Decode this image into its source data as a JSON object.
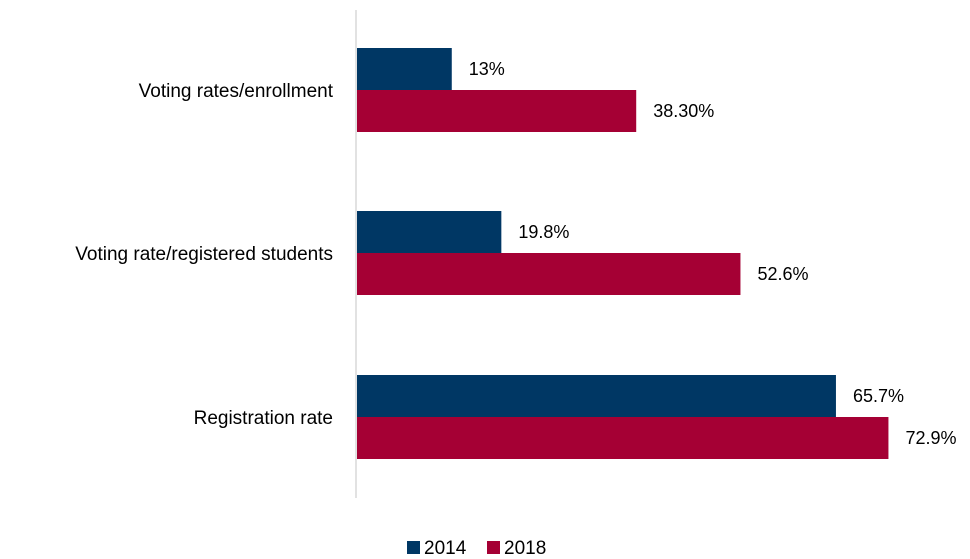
{
  "chart_data": {
    "type": "bar",
    "orientation": "horizontal",
    "title": "",
    "xlabel": "",
    "ylabel": "",
    "categories": [
      "Voting rates/enrollment",
      "Voting rate/registered students",
      "Registration rate"
    ],
    "series": [
      {
        "name": "2014",
        "values": [
          13,
          19.8,
          65.7
        ],
        "labels": [
          "13%",
          "19.8%",
          "65.7%"
        ],
        "color": "#003764"
      },
      {
        "name": "2018",
        "values": [
          38.3,
          52.6,
          72.9
        ],
        "labels": [
          "38.30%",
          "52.6%",
          "72.9%"
        ],
        "color": "#A50034"
      }
    ],
    "xlim": [
      0,
      80
    ],
    "grid": false,
    "legend_position": "bottom",
    "value_axis_visible": false
  }
}
